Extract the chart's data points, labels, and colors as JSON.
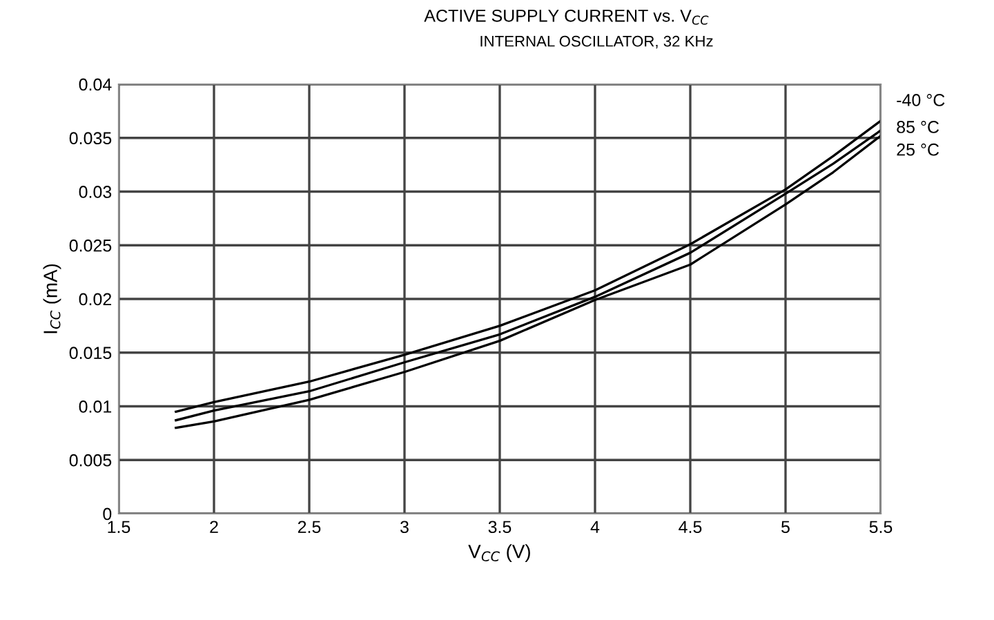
{
  "chart_data": {
    "type": "line",
    "title": "ACTIVE SUPPLY CURRENT vs. V$_{CC}$",
    "subtitle": "INTERNAL OSCILLATOR, 32 KHz",
    "xlabel": "V$_{CC}$ (V)",
    "ylabel": "I$_{CC}$ (mA)",
    "x": [
      1.8,
      2.0,
      2.5,
      3.0,
      3.5,
      4.0,
      4.5,
      5.0,
      5.25,
      5.5
    ],
    "series": [
      {
        "name": "-40 °C",
        "color": "#000000",
        "values": [
          0.0095,
          0.0104,
          0.0123,
          0.0148,
          0.0175,
          0.0208,
          0.0251,
          0.0302,
          0.0333,
          0.0366
        ]
      },
      {
        "name": "85 °C",
        "color": "#000000",
        "values": [
          0.0087,
          0.0096,
          0.0114,
          0.0141,
          0.0167,
          0.0202,
          0.0243,
          0.0298,
          0.0326,
          0.0357
        ]
      },
      {
        "name": "25 °C",
        "color": "#000000",
        "values": [
          0.008,
          0.0086,
          0.0106,
          0.0132,
          0.0161,
          0.0199,
          0.0232,
          0.0288,
          0.0318,
          0.0352
        ]
      }
    ],
    "xlim": [
      1.5,
      5.5
    ],
    "xticks": [
      1.5,
      2,
      2.5,
      3,
      3.5,
      4,
      4.5,
      5,
      5.5
    ],
    "ylim": [
      0,
      0.04
    ],
    "yticks": [
      0,
      0.005,
      0.01,
      0.015,
      0.02,
      0.025,
      0.03,
      0.035,
      0.04
    ],
    "grid": true,
    "legend": false,
    "marker": "none",
    "line_style": "solid"
  }
}
